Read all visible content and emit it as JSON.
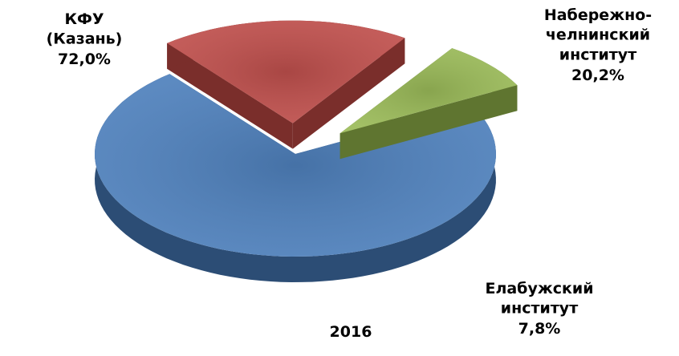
{
  "chart_data": {
    "type": "pie",
    "title": "2016",
    "categories": [
      "КФУ (Казань)",
      "Набережно-челнинский институт",
      "Елабужский институт"
    ],
    "values": [
      72.0,
      20.2,
      7.8
    ],
    "value_labels": [
      "72,0%",
      "20,2%",
      "7,8%"
    ],
    "colors": [
      "#4f81bd",
      "#c0504d",
      "#9bbb59"
    ],
    "side_colors": [
      "#2c4d75",
      "#7a2e2b",
      "#5f7530"
    ],
    "exploded": [
      false,
      true,
      true
    ]
  }
}
